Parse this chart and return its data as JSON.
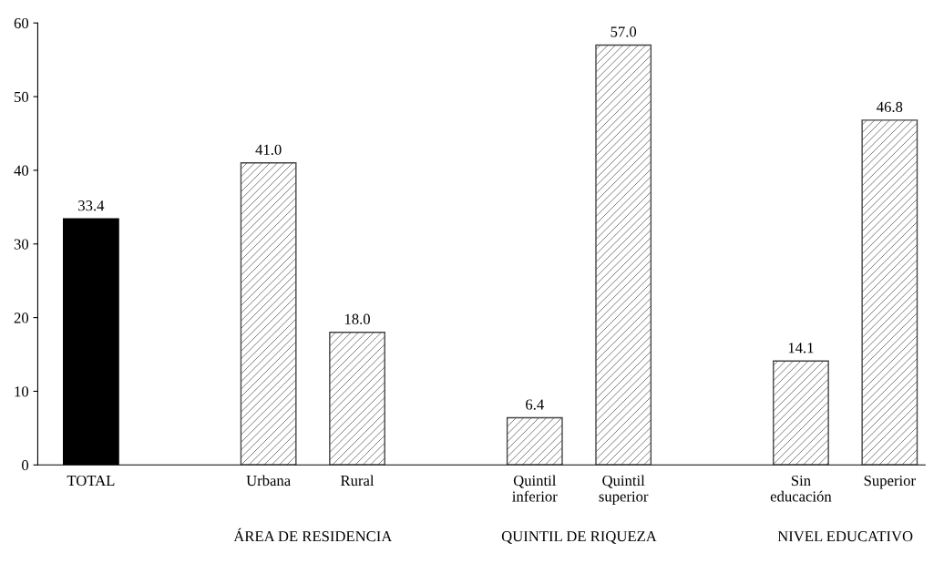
{
  "chart_data": {
    "type": "bar",
    "categories": [
      "TOTAL",
      null,
      "Urbana",
      "Rural",
      null,
      "Quintil\ninferior",
      "Quintil\nsuperior",
      null,
      "Sin\neducación",
      "Superior"
    ],
    "values": [
      33.4,
      null,
      41.0,
      18.0,
      null,
      6.4,
      57.0,
      null,
      14.1,
      46.8
    ],
    "colors": [
      "#000000",
      null,
      "#444444",
      "#444444",
      null,
      "#444444",
      "#444444",
      null,
      "#444444",
      "#444444"
    ],
    "ylim": [
      0,
      60
    ],
    "yticks": [
      0,
      10,
      20,
      30,
      40,
      50,
      60
    ],
    "data_labels": true,
    "value_labels": [
      "33.4",
      null,
      "41.0",
      "18.0",
      null,
      "6.4",
      "57.0",
      null,
      "14.1",
      "46.8"
    ],
    "grid": false,
    "legend": false,
    "annotations": [
      "ÁREA DE RESIDENCIA",
      "QUINTIL DE RIQUEZA",
      "NIVEL EDUCATIVO"
    ]
  }
}
